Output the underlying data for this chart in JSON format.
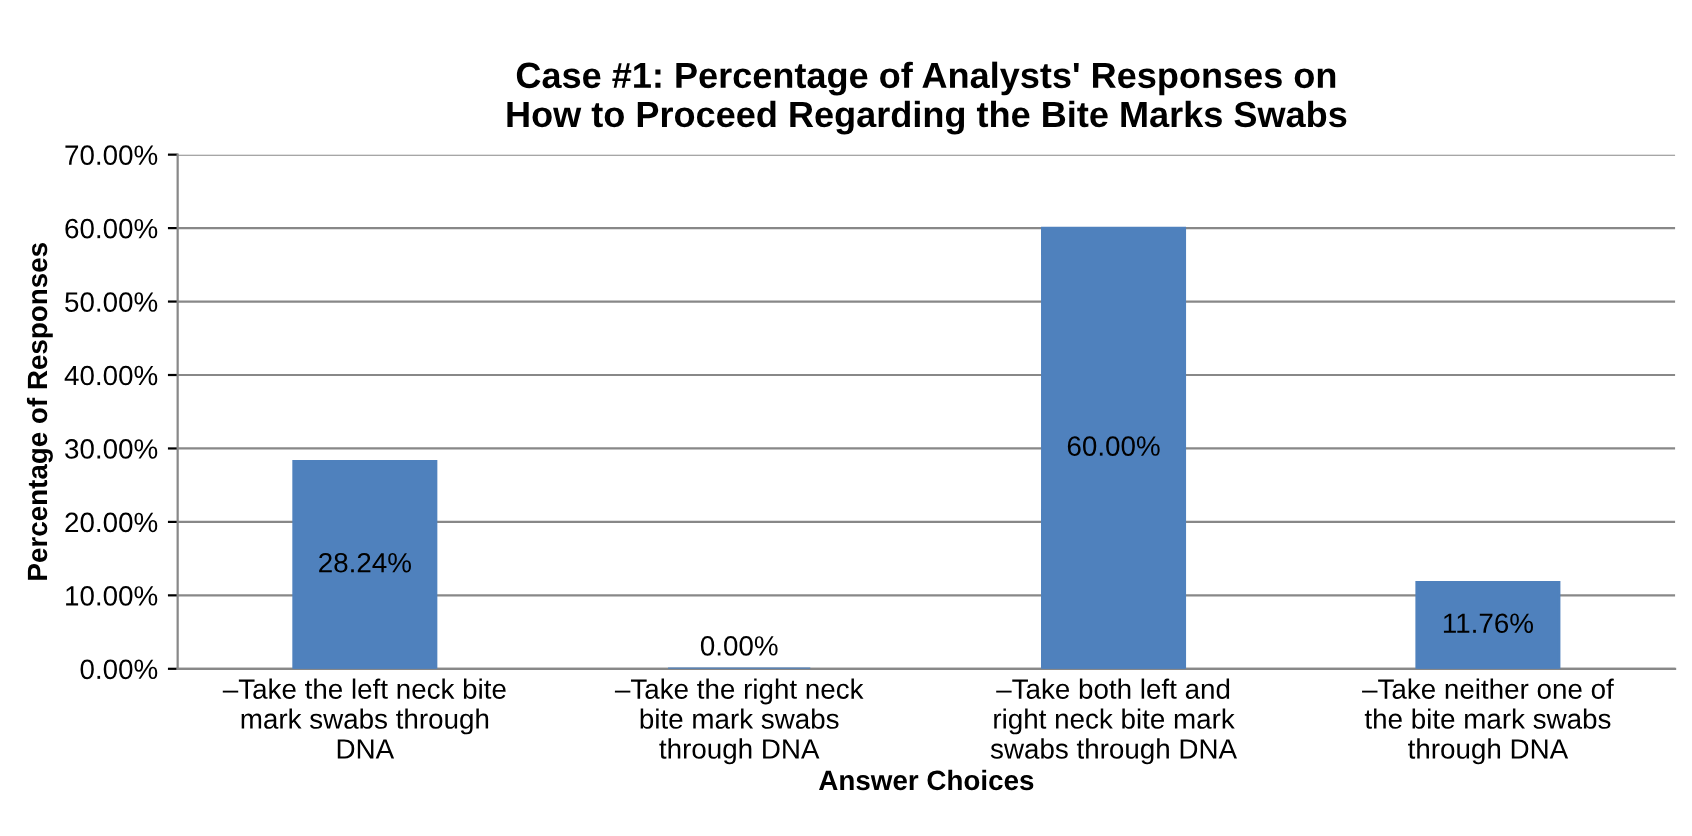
{
  "chart_data": {
    "type": "bar",
    "title": "Case #1: Percentage of Analysts' Responses on\nHow to Proceed Regarding the Bite Marks Swabs",
    "xlabel": "Answer Choices",
    "ylabel": "Percentage of Responses",
    "categories": [
      "–Take the left neck bite\nmark swabs through\nDNA",
      "–Take the right neck\nbite mark swabs\nthrough DNA",
      "–Take both left and\nright neck bite mark\nswabs through DNA",
      "–Take neither one of\nthe bite mark swabs\nthrough DNA"
    ],
    "values": [
      28.24,
      0,
      60,
      11.76
    ],
    "color": "#4f81bd",
    "value_labels": [
      "28.24%",
      "0.00%",
      "60.00%",
      "11.76%"
    ],
    "ylim": [
      0,
      70
    ],
    "yticks": [
      {
        "value": 0,
        "label": "0.00%"
      },
      {
        "value": 10,
        "label": "10.00%"
      },
      {
        "value": 20,
        "label": "20.00%"
      },
      {
        "value": 30,
        "label": "30.00%"
      },
      {
        "value": 40,
        "label": "40.00%"
      },
      {
        "value": 50,
        "label": "50.00%"
      },
      {
        "value": 60,
        "label": "60.00%"
      },
      {
        "value": 70,
        "label": "70.00%"
      }
    ],
    "grid": "y",
    "legend": false
  }
}
